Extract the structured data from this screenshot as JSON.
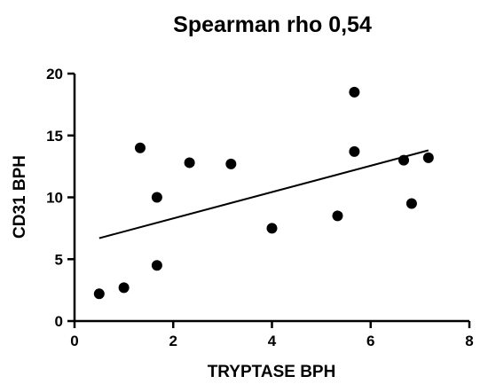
{
  "chart_data": {
    "type": "scatter",
    "title": "Spearman rho 0,54",
    "xlabel": "TRYPTASE BPH",
    "ylabel": "CD31 BPH",
    "xlim": [
      0,
      8
    ],
    "ylim": [
      0,
      20
    ],
    "xticks": [
      0,
      2,
      4,
      6,
      8
    ],
    "yticks": [
      0,
      5,
      10,
      15,
      20
    ],
    "grid": false,
    "legend": "none",
    "points": [
      {
        "x": 0.5,
        "y": 2.2
      },
      {
        "x": 1.0,
        "y": 2.7
      },
      {
        "x": 1.33,
        "y": 14.0
      },
      {
        "x": 1.67,
        "y": 10.0
      },
      {
        "x": 1.67,
        "y": 4.5
      },
      {
        "x": 2.33,
        "y": 12.8
      },
      {
        "x": 3.17,
        "y": 12.7
      },
      {
        "x": 4.0,
        "y": 7.5
      },
      {
        "x": 5.33,
        "y": 8.5
      },
      {
        "x": 5.67,
        "y": 18.5
      },
      {
        "x": 5.67,
        "y": 13.7
      },
      {
        "x": 6.67,
        "y": 13.0
      },
      {
        "x": 6.83,
        "y": 9.5
      },
      {
        "x": 7.17,
        "y": 13.2
      }
    ],
    "trendline": {
      "x": [
        0.5,
        7.17
      ],
      "y": [
        6.7,
        13.8
      ]
    }
  }
}
